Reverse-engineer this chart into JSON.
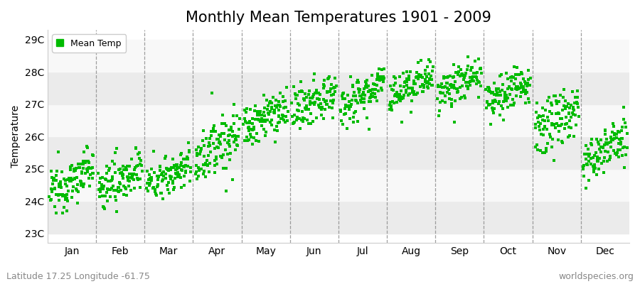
{
  "title": "Monthly Mean Temperatures 1901 - 2009",
  "ylabel": "Temperature",
  "ytick_labels": [
    "23C",
    "24C",
    "25C",
    "26C",
    "27C",
    "28C",
    "29C"
  ],
  "ytick_values": [
    23,
    24,
    25,
    26,
    27,
    28,
    29
  ],
  "ylim": [
    22.7,
    29.3
  ],
  "months": [
    "Jan",
    "Feb",
    "Mar",
    "Apr",
    "May",
    "Jun",
    "Jul",
    "Aug",
    "Sep",
    "Oct",
    "Nov",
    "Dec"
  ],
  "n_years": 109,
  "start_year": 1901,
  "end_year": 2009,
  "dot_color": "#00bb00",
  "dot_size": 7,
  "background_color": "#ffffff",
  "plot_bg_color_odd": "#ebebeb",
  "plot_bg_color_even": "#f8f8f8",
  "subtitle": "Latitude 17.25 Longitude -61.75",
  "watermark": "worldspecies.org",
  "legend_label": "Mean Temp",
  "title_fontsize": 15,
  "axis_fontsize": 10,
  "tick_fontsize": 10,
  "subtitle_fontsize": 9,
  "watermark_fontsize": 9,
  "month_base_temps": [
    24.2,
    24.3,
    24.5,
    25.3,
    26.2,
    26.7,
    27.0,
    27.2,
    27.3,
    27.0,
    26.1,
    25.2
  ],
  "month_spread": [
    0.7,
    0.7,
    0.6,
    0.9,
    0.7,
    0.7,
    0.7,
    0.6,
    0.6,
    0.6,
    0.8,
    0.7
  ],
  "month_trend": [
    0.008,
    0.007,
    0.006,
    0.008,
    0.007,
    0.007,
    0.006,
    0.006,
    0.006,
    0.007,
    0.008,
    0.007
  ],
  "random_seed": 12345
}
